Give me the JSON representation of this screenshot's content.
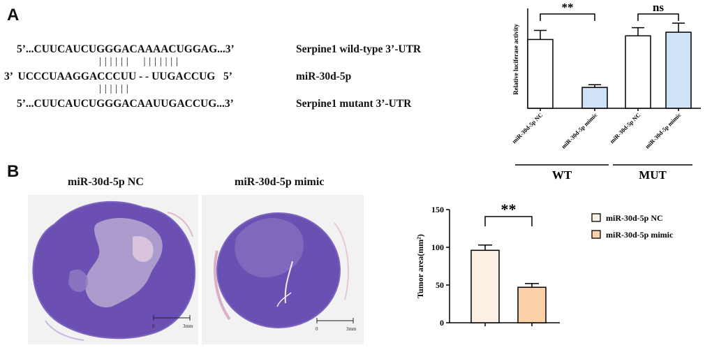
{
  "panel_a": {
    "letter": "A",
    "sequences": [
      {
        "seq": "5’...CUUCAUCUGGGACAAAACUGGAG...3’",
        "label": "Serpine1 wild-type 3’-UTR"
      },
      {
        "pairs": "| | | | | |     | | | | | | |"
      },
      {
        "seq": "3’  UCCCUAAGGACCCUU - - UUGACCUG   5’",
        "label": "miR-30d-5p"
      },
      {
        "pairs": "| | | | | |"
      },
      {
        "seq": "5’...CUUCAUCUGGGACAAUUGACCUG...3’",
        "label": "Serpine1 mutant 3’-UTR"
      }
    ]
  },
  "panel_b": {
    "letter": "B",
    "histology": [
      {
        "title": "miR-30d-5p NC",
        "scale_start": "0",
        "scale_end": "3mm"
      },
      {
        "title": "miR-30d-5p mimic",
        "scale_start": "0",
        "scale_end": "3mm"
      }
    ]
  },
  "chart_data": [
    {
      "type": "bar",
      "ylabel": "Relative luciferase activity",
      "categories": [
        "miR-30d-5p NC",
        "miR-30d-5p mimic",
        "miR-30d-5p NC",
        "miR-30d-5p mimic"
      ],
      "values": [
        3.8,
        1.15,
        4.0,
        4.2
      ],
      "errors": [
        0.5,
        0.15,
        0.45,
        0.5
      ],
      "colors": [
        "#ffffff",
        "#cfe2f7",
        "#ffffff",
        "#cfe2f7"
      ],
      "groups": [
        {
          "name": "WT",
          "indices": [
            0,
            1
          ]
        },
        {
          "name": "MUT",
          "indices": [
            2,
            3
          ]
        }
      ],
      "significance": [
        {
          "label": "**",
          "between": [
            0,
            1
          ]
        },
        {
          "label": "ns",
          "between": [
            2,
            3
          ]
        }
      ],
      "ylim": [
        0,
        5.4
      ],
      "grid": false
    },
    {
      "type": "bar",
      "ylabel": "Tumor area(mm²)",
      "categories": [
        "miR-30d-5p NC",
        "miR-30d-5p mimic"
      ],
      "values": [
        96,
        47
      ],
      "errors": [
        7,
        5
      ],
      "colors": [
        "#fcefe3",
        "#fcd0a8"
      ],
      "yticks": [
        0,
        50,
        100,
        150
      ],
      "ylim": [
        0,
        150
      ],
      "significance": [
        {
          "label": "**",
          "between": [
            0,
            1
          ]
        }
      ],
      "legend": {
        "position": "right",
        "entries": [
          "miR-30d-5p NC",
          "miR-30d-5p mimic"
        ]
      },
      "grid": false
    }
  ]
}
